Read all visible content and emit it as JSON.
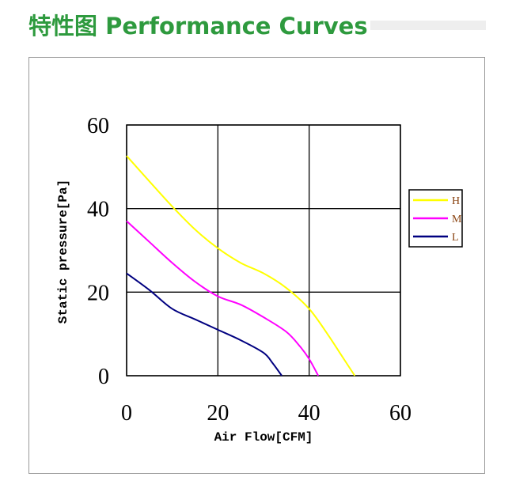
{
  "header": {
    "title": "特性图  Performance Curves"
  },
  "chart_data": {
    "type": "line",
    "title": "",
    "xlabel": "Air Flow[CFM]",
    "ylabel": "Static pressure[Pa]",
    "xlim": [
      0,
      60
    ],
    "ylim": [
      0,
      60
    ],
    "xticks": [
      "0",
      "20",
      "40",
      "60"
    ],
    "yticks": [
      "0",
      "20",
      "40",
      "60"
    ],
    "grid": true,
    "legend": "right",
    "series": [
      {
        "name": "H",
        "color": "#ffff00",
        "x": [
          0,
          5,
          10,
          15,
          20,
          25,
          30,
          35,
          40,
          44,
          47,
          50
        ],
        "y": [
          52.6,
          46.5,
          40.5,
          35,
          30.5,
          27,
          24.5,
          21,
          16,
          10,
          5,
          0
        ]
      },
      {
        "name": "M",
        "color": "#ff00ff",
        "x": [
          0,
          5,
          10,
          15,
          20,
          25,
          30,
          35,
          38,
          40,
          42
        ],
        "y": [
          37,
          32,
          27,
          22.5,
          19,
          17,
          14,
          10.5,
          7,
          4,
          0
        ]
      },
      {
        "name": "L",
        "color": "#000080",
        "x": [
          0,
          5,
          10,
          15,
          20,
          25,
          30,
          32,
          34
        ],
        "y": [
          24.5,
          20.5,
          16,
          13.5,
          11,
          8.5,
          5.5,
          3,
          0
        ]
      }
    ]
  }
}
